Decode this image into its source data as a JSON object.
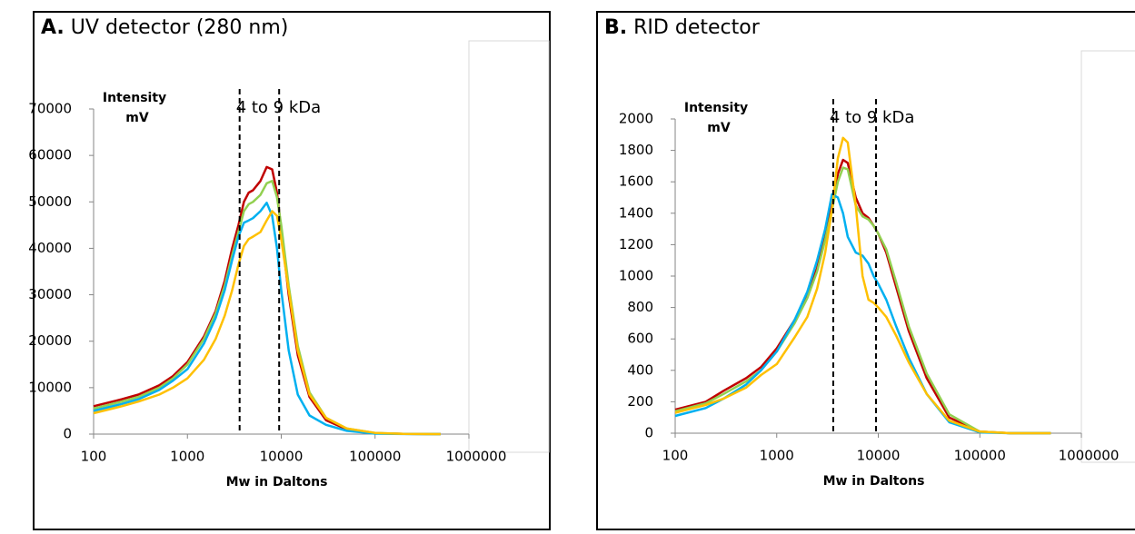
{
  "chart_data": [
    {
      "type": "line",
      "panel_label": "A.",
      "title": "UV detector (280 nm)",
      "y_label": [
        "Intensity",
        "mV"
      ],
      "x_label": "Mw in Daltons",
      "annotation": {
        "text": "4 to 9 kDa",
        "lines": [
          3600,
          9500
        ]
      },
      "x_scale": "log",
      "xlim": [
        100,
        1000000
      ],
      "xticks": [
        100,
        1000,
        10000,
        100000,
        1000000
      ],
      "ylim": [
        0,
        70000
      ],
      "yticks": [
        0,
        10000,
        20000,
        30000,
        40000,
        50000,
        60000,
        70000
      ],
      "x": [
        100,
        200,
        300,
        500,
        700,
        1000,
        1500,
        2000,
        2500,
        3000,
        3500,
        4000,
        4500,
        5000,
        6000,
        7000,
        8000,
        9000,
        10000,
        12000,
        15000,
        20000,
        30000,
        50000,
        100000,
        200000,
        500000
      ],
      "series": [
        {
          "color": "#c00000",
          "values": [
            6000,
            7500,
            8500,
            10500,
            12500,
            15500,
            21000,
            26500,
            33000,
            40000,
            45000,
            50000,
            52000,
            52500,
            54500,
            57500,
            57000,
            52000,
            44000,
            30000,
            17000,
            8000,
            3000,
            1000,
            200,
            50,
            0
          ]
        },
        {
          "color": "#92d050",
          "values": [
            5500,
            7000,
            8000,
            10000,
            12000,
            15000,
            20500,
            26000,
            32000,
            38500,
            43500,
            48000,
            49500,
            50000,
            51500,
            54000,
            54500,
            51000,
            45000,
            32000,
            19000,
            9000,
            3500,
            1200,
            250,
            50,
            0
          ]
        },
        {
          "color": "#00b0f0",
          "values": [
            5000,
            6500,
            7500,
            9500,
            11500,
            14000,
            19500,
            25000,
            31000,
            37500,
            42500,
            45500,
            46000,
            46500,
            48000,
            49800,
            47000,
            40000,
            31000,
            18000,
            8500,
            4000,
            2000,
            700,
            100,
            20,
            0
          ]
        },
        {
          "color": "#ffc000",
          "values": [
            4500,
            6000,
            7000,
            8500,
            10000,
            12000,
            16000,
            20500,
            25500,
            31000,
            36500,
            40500,
            42000,
            42500,
            43500,
            46000,
            48000,
            47000,
            42000,
            31000,
            18000,
            8500,
            3500,
            1200,
            250,
            50,
            0
          ]
        }
      ]
    },
    {
      "type": "line",
      "panel_label": "B.",
      "title": "RID detector",
      "y_label": [
        "Intensity",
        "mV"
      ],
      "x_label": "Mw in Daltons",
      "annotation": {
        "text": "4 to 9 kDa",
        "lines": [
          3600,
          9500
        ]
      },
      "x_scale": "log",
      "xlim": [
        100,
        1000000
      ],
      "xticks": [
        100,
        1000,
        10000,
        100000,
        1000000
      ],
      "ylim": [
        0,
        2000
      ],
      "yticks": [
        0,
        200,
        400,
        600,
        800,
        1000,
        1200,
        1400,
        1600,
        1800,
        2000
      ],
      "x": [
        100,
        200,
        300,
        500,
        700,
        1000,
        1500,
        2000,
        2500,
        3000,
        3500,
        4000,
        4500,
        5000,
        6000,
        7000,
        8000,
        9000,
        10000,
        12000,
        15000,
        20000,
        30000,
        50000,
        100000,
        200000,
        500000
      ],
      "series": [
        {
          "color": "#c00000",
          "values": [
            150,
            200,
            270,
            350,
            420,
            540,
            720,
            880,
            1050,
            1250,
            1450,
            1650,
            1740,
            1720,
            1500,
            1400,
            1370,
            1320,
            1270,
            1150,
            930,
            650,
            350,
            100,
            10,
            0,
            0
          ]
        },
        {
          "color": "#92d050",
          "values": [
            140,
            190,
            250,
            330,
            400,
            520,
            700,
            860,
            1030,
            1230,
            1420,
            1600,
            1690,
            1680,
            1450,
            1380,
            1360,
            1320,
            1270,
            1170,
            960,
            680,
            380,
            120,
            10,
            0,
            0
          ]
        },
        {
          "color": "#00b0f0",
          "values": [
            110,
            160,
            220,
            310,
            400,
            520,
            720,
            900,
            1100,
            1300,
            1520,
            1500,
            1400,
            1250,
            1150,
            1130,
            1080,
            1000,
            950,
            850,
            680,
            480,
            250,
            70,
            5,
            0,
            0
          ]
        },
        {
          "color": "#ffc000",
          "values": [
            130,
            180,
            220,
            290,
            370,
            440,
            610,
            740,
            920,
            1150,
            1420,
            1750,
            1880,
            1850,
            1450,
            1000,
            850,
            830,
            800,
            740,
            620,
            450,
            250,
            80,
            10,
            0,
            0
          ]
        }
      ]
    }
  ]
}
